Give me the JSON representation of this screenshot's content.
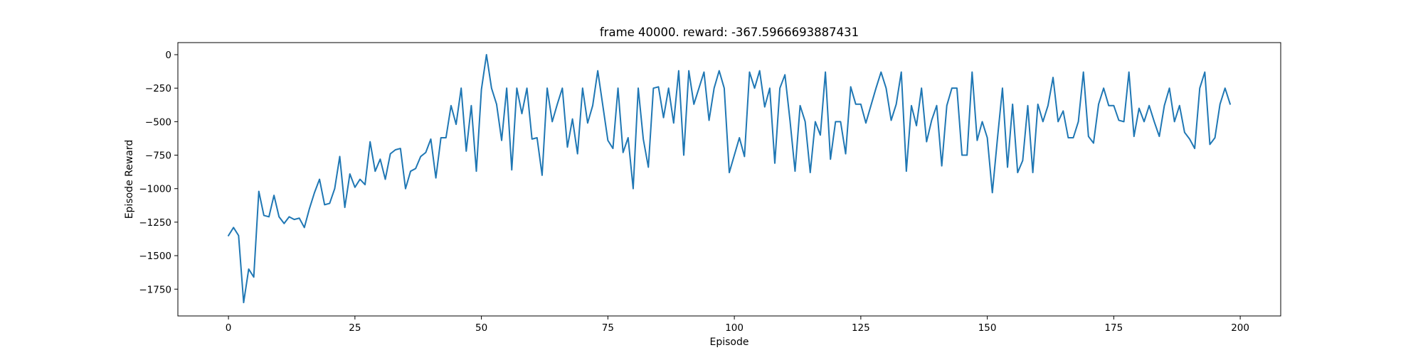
{
  "colors": {
    "series": "#1f77b4",
    "axes": "#000000",
    "background": "#ffffff"
  },
  "chart_data": {
    "type": "line",
    "title": "frame 40000. reward: -367.5966693887431",
    "xlabel": "Episode",
    "ylabel": "Episode Reward",
    "xlim": [
      -10,
      208
    ],
    "ylim": [
      -1950,
      90
    ],
    "xticks": [
      0,
      25,
      50,
      75,
      100,
      125,
      150,
      175,
      200
    ],
    "yticks": [
      0,
      -250,
      -500,
      -750,
      -1000,
      -1250,
      -1500,
      -1750
    ],
    "xtick_labels": [
      "0",
      "25",
      "50",
      "75",
      "100",
      "125",
      "150",
      "175",
      "200"
    ],
    "ytick_labels": [
      "0",
      "−250",
      "−500",
      "−750",
      "−1000",
      "−1250",
      "−1500",
      "−1750"
    ],
    "grid": false,
    "series": [
      {
        "values": [
          -1350,
          -1290,
          -1350,
          -1850,
          -1600,
          -1660,
          -1020,
          -1200,
          -1210,
          -1050,
          -1210,
          -1260,
          -1210,
          -1230,
          -1220,
          -1290,
          -1150,
          -1030,
          -930,
          -1120,
          -1110,
          -1000,
          -760,
          -1140,
          -890,
          -990,
          -930,
          -970,
          -650,
          -870,
          -780,
          -930,
          -740,
          -710,
          -700,
          -1000,
          -870,
          -850,
          -760,
          -730,
          -630,
          -920,
          -620,
          -620,
          -380,
          -520,
          -250,
          -720,
          -380,
          -870,
          -260,
          0,
          -250,
          -370,
          -640,
          -250,
          -860,
          -250,
          -440,
          -250,
          -630,
          -620,
          -900,
          -250,
          -500,
          -370,
          -250,
          -690,
          -480,
          -740,
          -250,
          -510,
          -380,
          -120,
          -380,
          -640,
          -700,
          -250,
          -730,
          -620,
          -1000,
          -250,
          -630,
          -840,
          -250,
          -240,
          -470,
          -250,
          -510,
          -120,
          -750,
          -120,
          -370,
          -250,
          -130,
          -490,
          -250,
          -120,
          -250,
          -880,
          -750,
          -620,
          -760,
          -130,
          -250,
          -120,
          -390,
          -250,
          -810,
          -250,
          -150,
          -490,
          -870,
          -380,
          -500,
          -880,
          -500,
          -600,
          -130,
          -780,
          -500,
          -500,
          -740,
          -240,
          -370,
          -370,
          -510,
          -380,
          -250,
          -130,
          -250,
          -490,
          -370,
          -130,
          -870,
          -380,
          -530,
          -250,
          -650,
          -490,
          -380,
          -830,
          -380,
          -250,
          -250,
          -750,
          -750,
          -130,
          -640,
          -500,
          -620,
          -1030,
          -630,
          -250,
          -840,
          -370,
          -880,
          -790,
          -380,
          -880,
          -370,
          -500,
          -380,
          -170,
          -500,
          -420,
          -620,
          -620,
          -500,
          -130,
          -610,
          -660,
          -370,
          -250,
          -380,
          -380,
          -490,
          -500,
          -130,
          -610,
          -400,
          -500,
          -380,
          -500,
          -610,
          -380,
          -250,
          -500,
          -380,
          -580,
          -630,
          -700,
          -250,
          -130,
          -670,
          -620,
          -370,
          -250,
          -368
        ]
      }
    ]
  }
}
